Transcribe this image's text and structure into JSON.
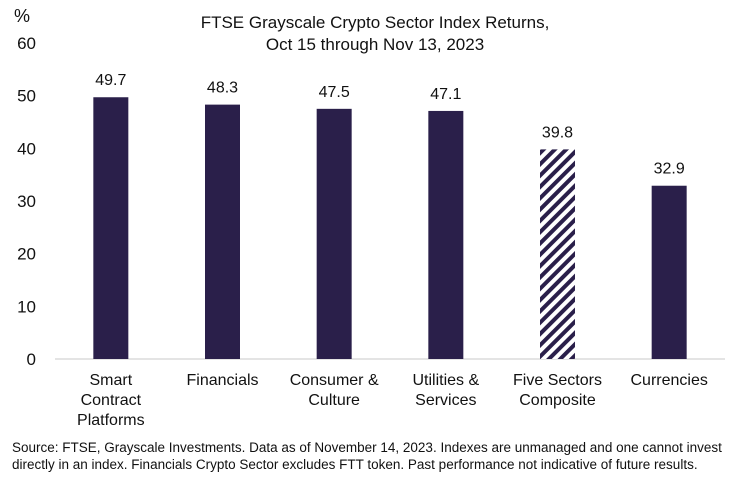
{
  "chart_data": {
    "type": "bar",
    "title": [
      "FTSE Grayscale Crypto Sector Index Returns,",
      "Oct 15 through Nov 13, 2023"
    ],
    "ylabel": "%",
    "xlabel": "",
    "ylim": [
      0,
      60
    ],
    "yticks": [
      0,
      10,
      20,
      30,
      40,
      50,
      60
    ],
    "grid": false,
    "legend": "none",
    "categories": [
      [
        "Smart",
        "Contract",
        "Platforms"
      ],
      [
        "Financials"
      ],
      [
        "Consumer &",
        "Culture"
      ],
      [
        "Utilities &",
        "Services"
      ],
      [
        "Five Sectors",
        "Composite"
      ],
      [
        "Currencies"
      ]
    ],
    "values": [
      49.7,
      48.3,
      47.5,
      47.1,
      39.8,
      32.9
    ],
    "value_labels": [
      "49.7",
      "48.3",
      "47.5",
      "47.1",
      "39.8",
      "32.9"
    ],
    "bar_styles": [
      "solid",
      "solid",
      "solid",
      "solid",
      "hatched",
      "solid"
    ],
    "bar_color": "#2a1f4a",
    "axis_color": "#c8c8c8"
  },
  "footer": {
    "source": "Source: FTSE, Grayscale Investments. Data as of November 14, 2023. Indexes are unmanaged and one cannot invest directly in an index. Financials Crypto Sector excludes FTT token. Past performance not indicative of future results."
  }
}
